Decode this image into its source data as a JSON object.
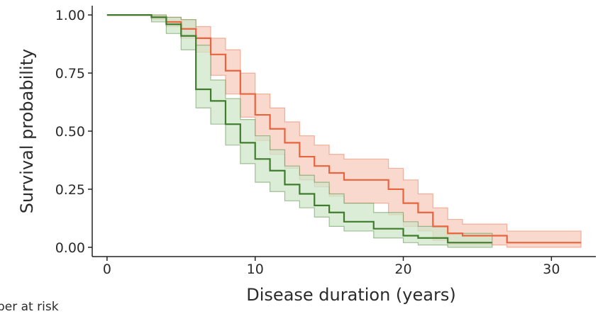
{
  "chart_data": {
    "type": "line",
    "style": "survival step curve with confidence bands",
    "xlabel": "Disease duration (years)",
    "ylabel": "Survival probability",
    "xlim": [
      -1,
      33
    ],
    "ylim": [
      -0.04,
      1.04
    ],
    "xticks": [
      0,
      10,
      20,
      30
    ],
    "xtick_labels": [
      "0",
      "10",
      "20",
      "30"
    ],
    "yticks": [
      0,
      0.25,
      0.5,
      0.75,
      1.0
    ],
    "ytick_labels": [
      "0.00",
      "0.25",
      "0.50",
      "0.75",
      "1.00"
    ],
    "grid": false,
    "colors": {
      "orange": "#e8643c",
      "orange_band": "#f7cbbd",
      "green": "#3f7d2c",
      "green_band": "#cfe6c9"
    },
    "series": [
      {
        "color": "orange",
        "x": [
          0,
          2,
          3,
          4,
          5,
          6,
          7,
          8,
          9,
          10,
          11,
          12,
          13,
          14,
          15,
          16,
          19,
          20,
          21,
          22,
          23,
          24,
          27,
          32
        ],
        "y": [
          1.0,
          1.0,
          0.99,
          0.97,
          0.94,
          0.9,
          0.83,
          0.76,
          0.66,
          0.57,
          0.51,
          0.45,
          0.39,
          0.35,
          0.32,
          0.29,
          0.25,
          0.19,
          0.15,
          0.09,
          0.06,
          0.05,
          0.02,
          0.02
        ],
        "lower": [
          1.0,
          1.0,
          0.98,
          0.95,
          0.9,
          0.84,
          0.74,
          0.66,
          0.56,
          0.46,
          0.4,
          0.34,
          0.29,
          0.26,
          0.22,
          0.19,
          0.14,
          0.09,
          0.07,
          0.03,
          0.01,
          0.01,
          0.0,
          0.0
        ],
        "upper": [
          1.0,
          1.0,
          1.0,
          0.99,
          0.98,
          0.95,
          0.9,
          0.85,
          0.75,
          0.66,
          0.6,
          0.54,
          0.48,
          0.44,
          0.4,
          0.38,
          0.34,
          0.29,
          0.23,
          0.17,
          0.12,
          0.1,
          0.07,
          0.07
        ]
      },
      {
        "color": "green",
        "x": [
          0,
          2,
          3,
          4,
          5,
          6,
          7,
          8,
          9,
          10,
          11,
          12,
          13,
          14,
          15,
          16,
          18,
          20,
          21,
          23,
          26
        ],
        "y": [
          1.0,
          1.0,
          0.99,
          0.96,
          0.91,
          0.68,
          0.63,
          0.53,
          0.45,
          0.38,
          0.33,
          0.27,
          0.23,
          0.18,
          0.15,
          0.11,
          0.08,
          0.05,
          0.04,
          0.02,
          0.02
        ],
        "lower": [
          1.0,
          1.0,
          0.97,
          0.92,
          0.85,
          0.6,
          0.53,
          0.44,
          0.36,
          0.28,
          0.24,
          0.2,
          0.17,
          0.13,
          0.09,
          0.07,
          0.04,
          0.02,
          0.01,
          0.0,
          0.0
        ],
        "upper": [
          1.0,
          1.0,
          1.0,
          0.99,
          0.98,
          0.87,
          0.72,
          0.64,
          0.55,
          0.48,
          0.42,
          0.35,
          0.31,
          0.28,
          0.23,
          0.19,
          0.15,
          0.11,
          0.09,
          0.06,
          0.06
        ]
      }
    ]
  },
  "footer": {
    "partial_text": "ber at risk"
  }
}
